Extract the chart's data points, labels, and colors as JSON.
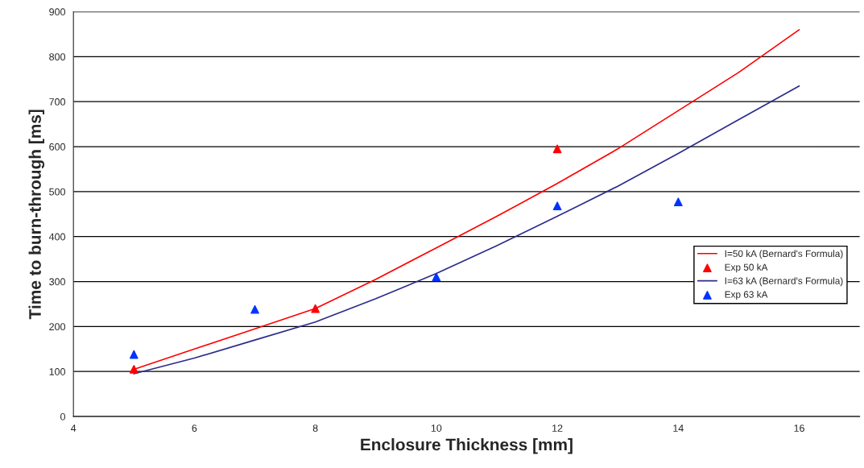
{
  "chart_data": {
    "type": "line",
    "xlabel": "Enclosure Thickness [mm]",
    "ylabel": "Time to burn-through [ms]",
    "xlim": [
      4,
      17
    ],
    "xticks": [
      4,
      6,
      8,
      10,
      12,
      14,
      16
    ],
    "ylim": [
      0,
      900
    ],
    "yticks": [
      0,
      100,
      200,
      300,
      400,
      500,
      600,
      700,
      800,
      900
    ],
    "grid": "y",
    "legend": "right",
    "series": [
      {
        "name": "I=50 kA (Bernard's Formula)",
        "color": "#ff0000",
        "marker": "none",
        "x": [
          5,
          6,
          7,
          8,
          9,
          10,
          11,
          12,
          13,
          14,
          15,
          16
        ],
        "values": [
          105,
          150,
          195,
          240,
          305,
          375,
          445,
          518,
          595,
          680,
          765,
          860
        ]
      },
      {
        "name": "Exp 50 kA",
        "type": "scatter",
        "color": "#ff0000",
        "marker": "triangle",
        "x": [
          5,
          8,
          12
        ],
        "values": [
          105,
          240,
          595
        ]
      },
      {
        "name": "I=63 kA (Bernard's Formula)",
        "color": "#2b2b8c",
        "marker": "none",
        "x": [
          5,
          6,
          7,
          8,
          9,
          10,
          11,
          12,
          13,
          14,
          15,
          16
        ],
        "values": [
          95,
          130,
          170,
          210,
          262,
          318,
          380,
          445,
          512,
          585,
          660,
          735
        ]
      },
      {
        "name": "Exp 63 kA",
        "type": "scatter",
        "color": "#0033ff",
        "marker": "triangle",
        "x": [
          5,
          7,
          10,
          12,
          14
        ],
        "values": [
          138,
          238,
          310,
          468,
          477
        ]
      }
    ]
  }
}
